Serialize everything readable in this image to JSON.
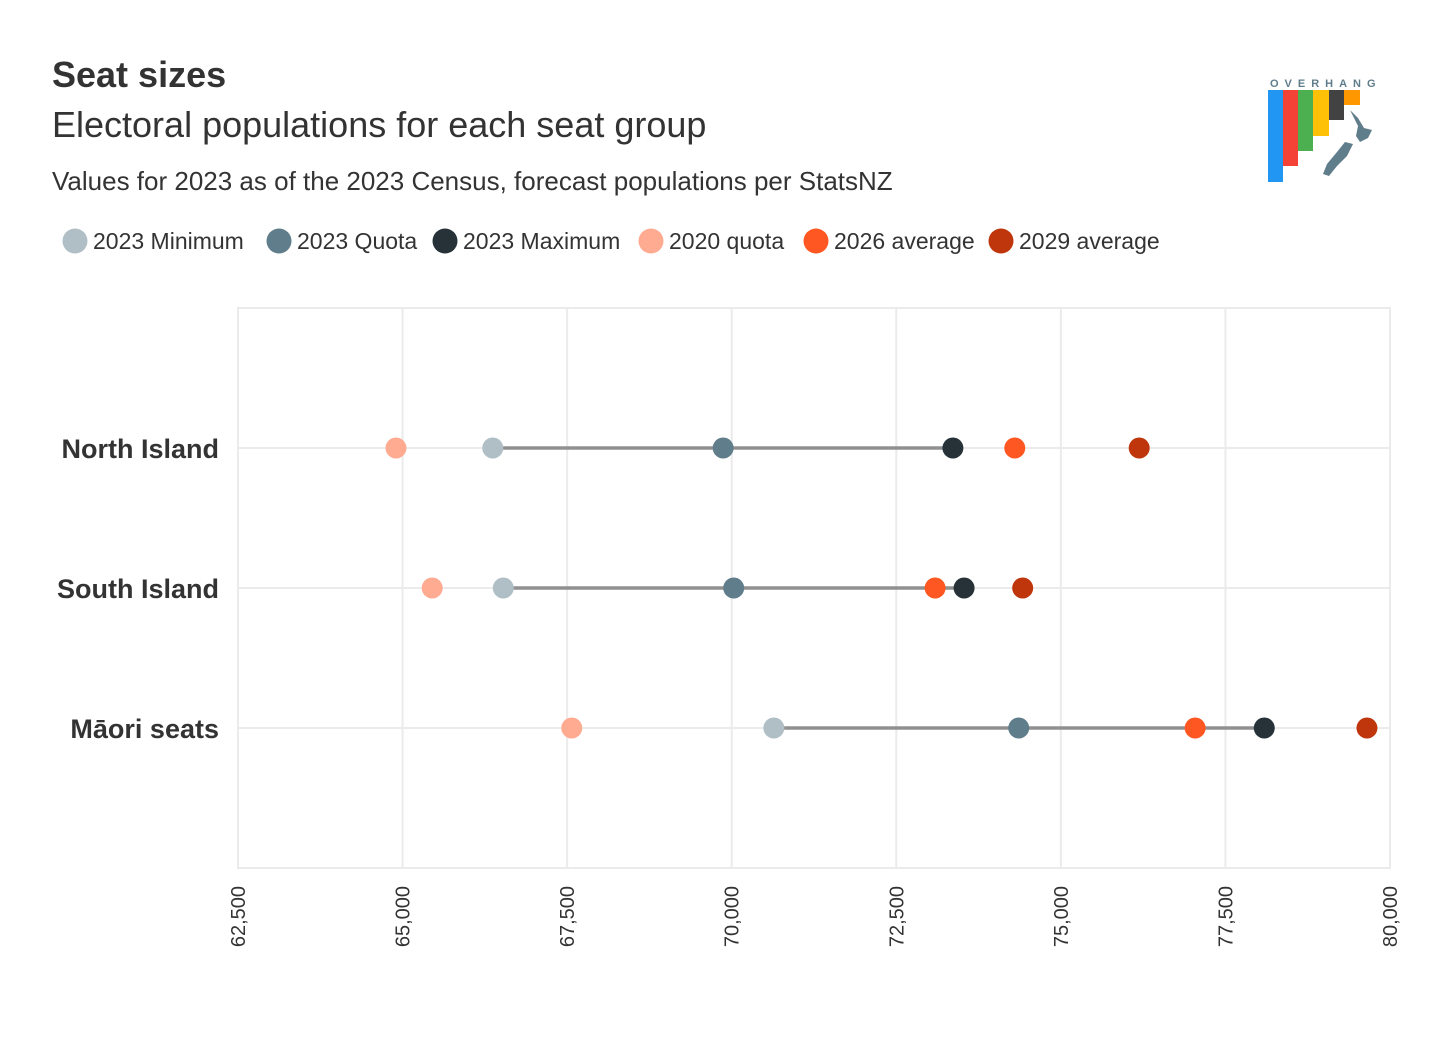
{
  "chart_data": {
    "type": "dumbbell",
    "title": "Seat sizes",
    "subtitle": "Electoral populations for each seat group",
    "caption": "Values for 2023 as of the 2023 Census, forecast populations per StatsNZ",
    "xlim": [
      62500,
      80000
    ],
    "xticks": [
      62500,
      65000,
      67500,
      70000,
      72500,
      75000,
      77500,
      80000
    ],
    "xtick_labels": [
      "62,500",
      "65,000",
      "67,500",
      "70,000",
      "72,500",
      "75,000",
      "77,500",
      "80,000"
    ],
    "grid": true,
    "legend_position": "top-left",
    "categories": [
      "North Island",
      "South Island",
      "Māori seats"
    ],
    "series": [
      {
        "name": "2023 Minimum",
        "color": "#b0bec5",
        "values": [
          66370,
          66530,
          70640
        ]
      },
      {
        "name": "2023 Quota",
        "color": "#607d8b",
        "values": [
          69870,
          70030,
          74360
        ]
      },
      {
        "name": "2023 Maximum",
        "color": "#263238",
        "values": [
          73360,
          73530,
          78090
        ]
      },
      {
        "name": "2020 quota",
        "color": "#ffab91",
        "values": [
          64900,
          65450,
          67570
        ]
      },
      {
        "name": "2026 average",
        "color": "#ff5722",
        "values": [
          74300,
          73090,
          77040
        ]
      },
      {
        "name": "2029 average",
        "color": "#bf360c",
        "values": [
          76190,
          74420,
          79650
        ]
      }
    ]
  },
  "logo": {
    "text": "THE OVERHANG"
  }
}
